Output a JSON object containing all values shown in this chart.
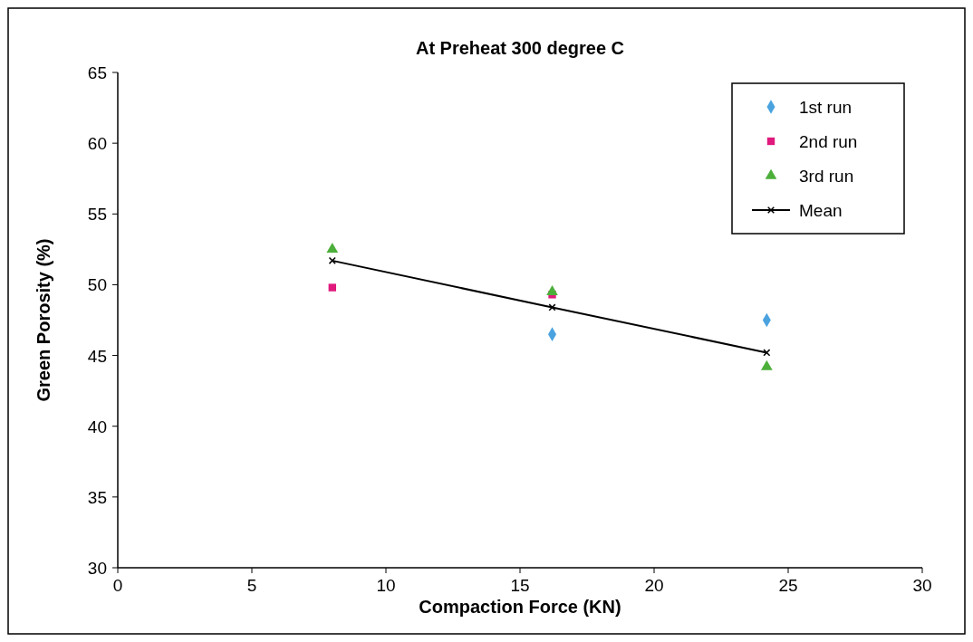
{
  "chart_data": {
    "type": "scatter",
    "title": "At Preheat 300 degree C",
    "xlabel": "Compaction Force (KN)",
    "ylabel": "Green Porosity (%)",
    "x": [
      8,
      16.2,
      24.2
    ],
    "series": [
      {
        "name": "1st run",
        "color": "#4aa3df",
        "marker": "diamond",
        "values": [
          null,
          46.5,
          47.5
        ]
      },
      {
        "name": "2nd run",
        "color": "#e0197d",
        "marker": "square",
        "values": [
          49.8,
          49.3,
          null
        ]
      },
      {
        "name": "3rd run",
        "color": "#4caf3a",
        "marker": "triangle",
        "values": [
          52.5,
          49.5,
          44.2
        ]
      },
      {
        "name": "Mean",
        "type": "line",
        "color": "#000000",
        "marker": "cross",
        "line_style": "solid",
        "values": [
          51.7,
          48.4,
          45.2
        ]
      }
    ],
    "xlim": [
      0,
      30
    ],
    "xticks": [
      0,
      5,
      10,
      15,
      20,
      25,
      30
    ],
    "ylim": [
      30,
      65
    ],
    "yticks": [
      30,
      35,
      40,
      45,
      50,
      55,
      60,
      65
    ],
    "grid": false,
    "legend": "top right"
  }
}
